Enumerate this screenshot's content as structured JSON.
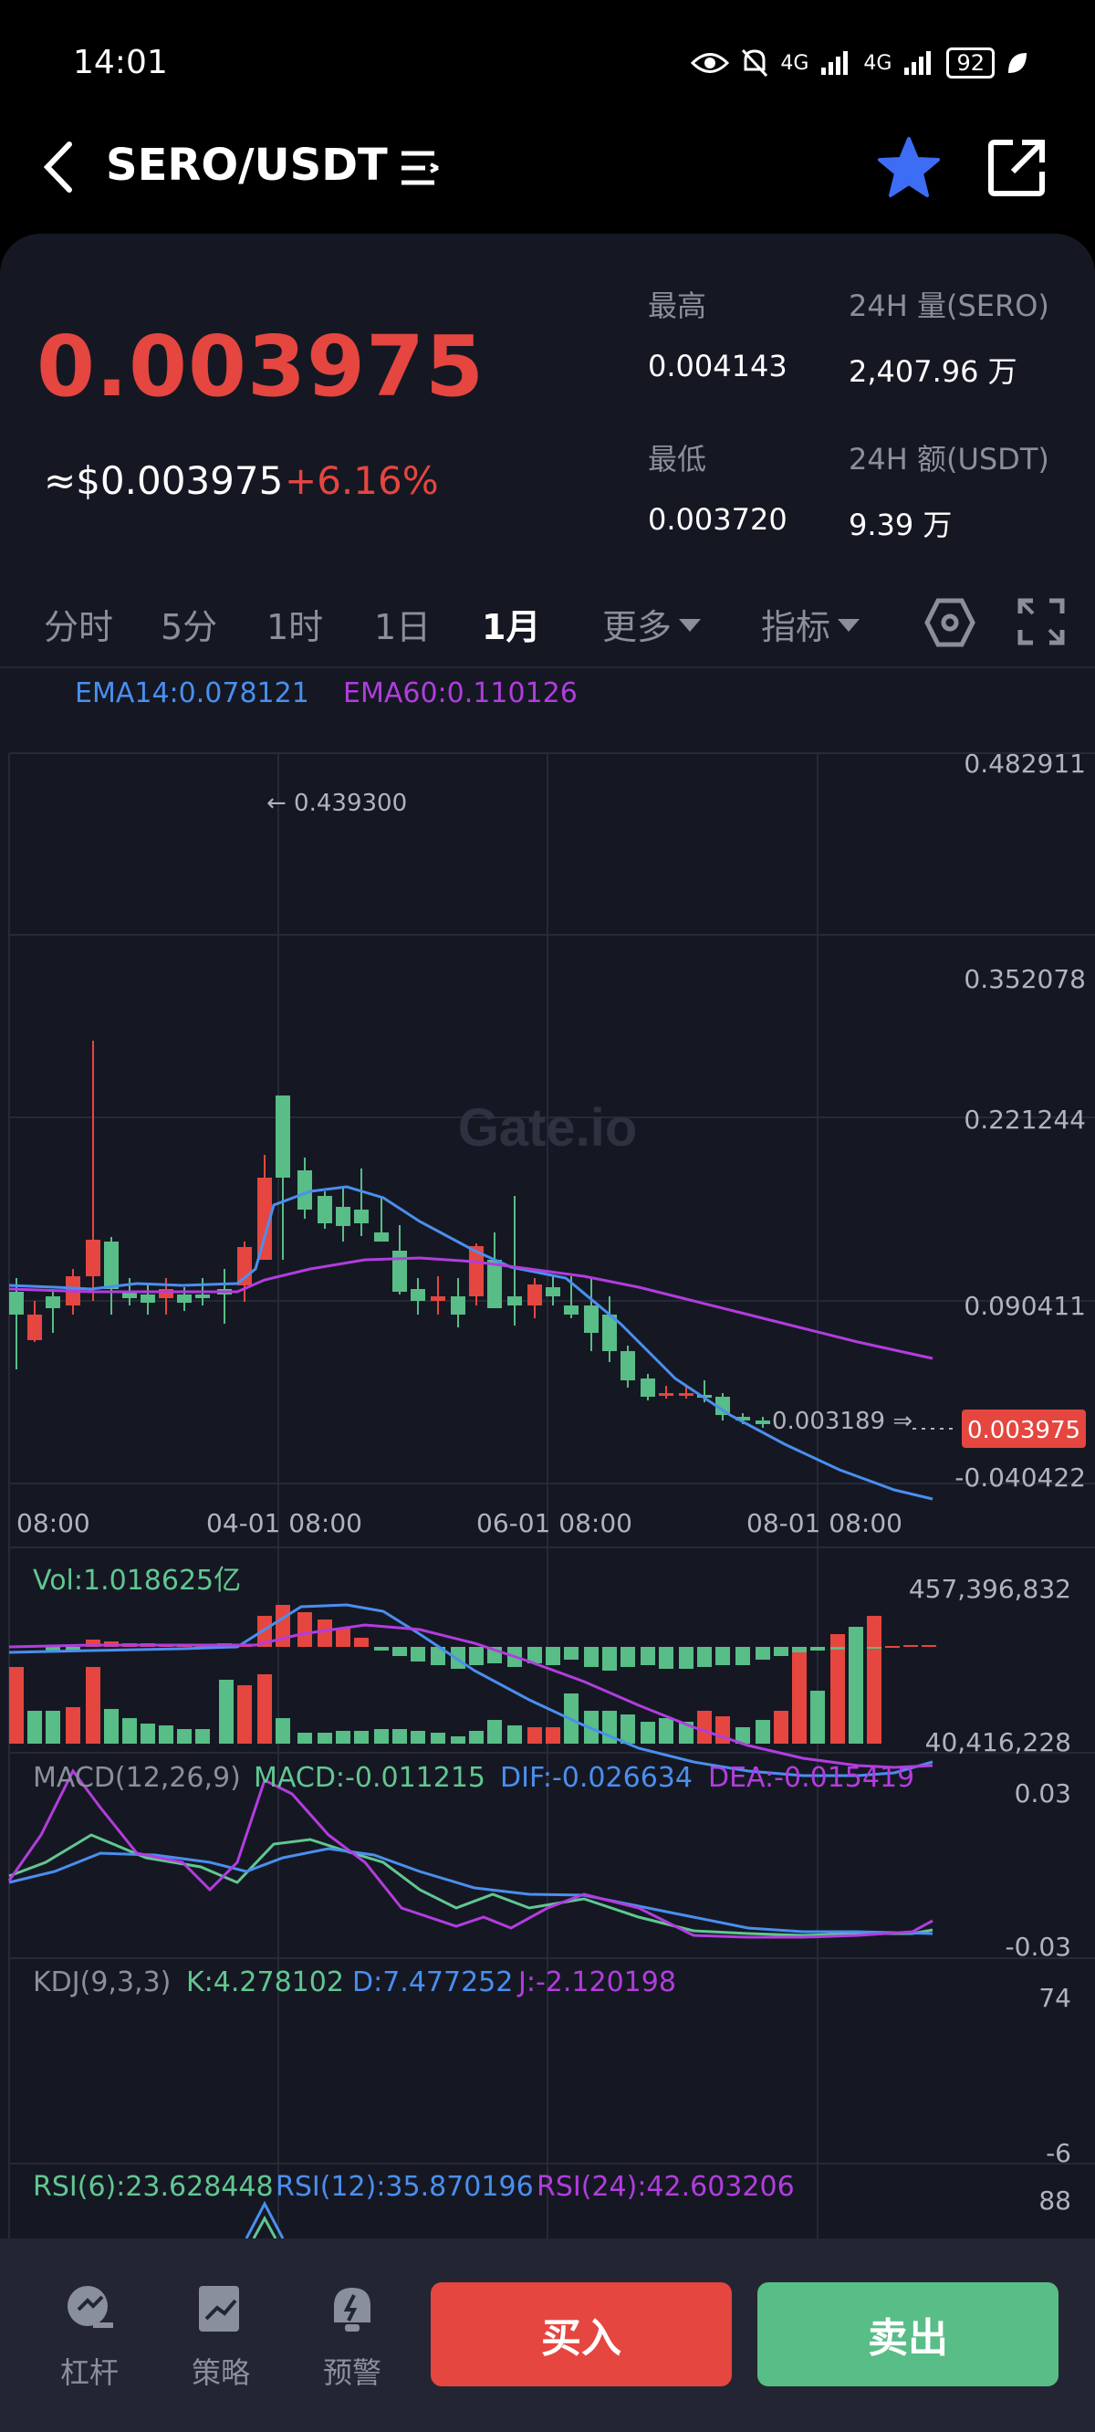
{
  "status_bar": {
    "time": "14:01",
    "net1": "4G",
    "net2": "4G",
    "battery": "92"
  },
  "header": {
    "pair": "SERO/USDT"
  },
  "ticker": {
    "price": "0.003975",
    "price_usd": "≈$0.003975",
    "change": "+6.16%",
    "high_label": "最高",
    "high_value": "0.004143",
    "low_label": "最低",
    "low_value": "0.003720",
    "vol_label": "24H 量(SERO)",
    "vol_value": "2,407.96 万",
    "amt_label": "24H 额(USDT)",
    "amt_value": "9.39 万"
  },
  "tabs": [
    "分时",
    "5分",
    "1时",
    "1日",
    "1月"
  ],
  "tab_more": "更多",
  "tab_indicator": "指标",
  "ema": {
    "ema14": "EMA14:0.078121",
    "ema60": "EMA60:0.110126"
  },
  "price_axis": [
    "0.482911",
    "0.352078",
    "0.221244",
    "0.090411",
    "-0.040422"
  ],
  "time_axis": [
    "08:00",
    "04-01 08:00",
    "06-01 08:00",
    "08-01 08:00"
  ],
  "markers": {
    "max": "← 0.439300",
    "min": "0.003189 ⇒",
    "last": "0.003975"
  },
  "watermark": "Gate.io",
  "volume": {
    "label": "Vol:1.018625亿",
    "top": "457,396,832",
    "bottom": "40,416,228"
  },
  "macd": {
    "title": "MACD(12,26,9)",
    "macd": "MACD:-0.011215",
    "dif": "DIF:-0.026634",
    "dea": "DEA:-0.015419",
    "top": "0.03",
    "bottom": "-0.03"
  },
  "kdj": {
    "title": "KDJ(9,3,3)",
    "k": "K:4.278102",
    "d": "D:7.477252",
    "j": "J:-2.120198",
    "top": "74",
    "bottom": "-6"
  },
  "rsi": {
    "r6": "RSI(6):23.628448",
    "r12": "RSI(12):35.870196",
    "r24": "RSI(24):42.603206",
    "top": "88"
  },
  "bottom_nav": {
    "leverage": "杠杆",
    "strategy": "策略",
    "alert": "预警",
    "buy": "买入",
    "sell": "卖出"
  },
  "colors": {
    "up": "#e5463f",
    "down": "#58bd86",
    "ema14": "#4a8fef",
    "ema60": "#b23dde",
    "bg": "#151823"
  }
}
